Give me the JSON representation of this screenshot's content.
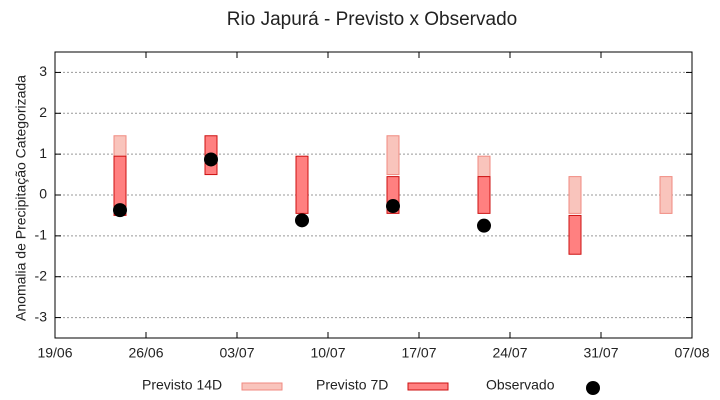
{
  "chart_data": {
    "type": "range",
    "title": "Rio Japurá - Previsto x Observado",
    "ylabel": "Anomalia de Precipitação Categorizada",
    "x": [
      "24/06",
      "01/07",
      "08/07",
      "15/07",
      "22/07",
      "29/07",
      "05/08"
    ],
    "xlim": [
      "19/06",
      "07/08"
    ],
    "xticks": [
      "19/06",
      "26/06",
      "03/07",
      "10/07",
      "17/07",
      "24/07",
      "31/07",
      "07/08"
    ],
    "ylim": [
      -3.5,
      3.5
    ],
    "yticks": [
      -3,
      -2,
      -1,
      0,
      1,
      2,
      3
    ],
    "grid": true,
    "legend": "bottom",
    "series": [
      {
        "name": "Previsto 14D",
        "color": "#f9c4bc",
        "edge": "#f08a80",
        "low": [
          0.5,
          null,
          null,
          0.5,
          0.45,
          -0.45,
          -0.45
        ],
        "high": [
          1.45,
          null,
          null,
          1.45,
          0.95,
          0.45,
          0.45
        ]
      },
      {
        "name": "Previsto 7D",
        "color": "#ff8080",
        "edge": "#cc1010",
        "low": [
          -0.5,
          0.5,
          -0.45,
          -0.45,
          -0.45,
          -1.45,
          null
        ],
        "high": [
          0.95,
          1.45,
          0.95,
          0.45,
          0.45,
          -0.5,
          null
        ]
      },
      {
        "name": "Observado",
        "color": "#000000",
        "values": [
          -0.37,
          0.87,
          -0.62,
          -0.27,
          -0.75,
          null,
          null
        ]
      }
    ]
  }
}
